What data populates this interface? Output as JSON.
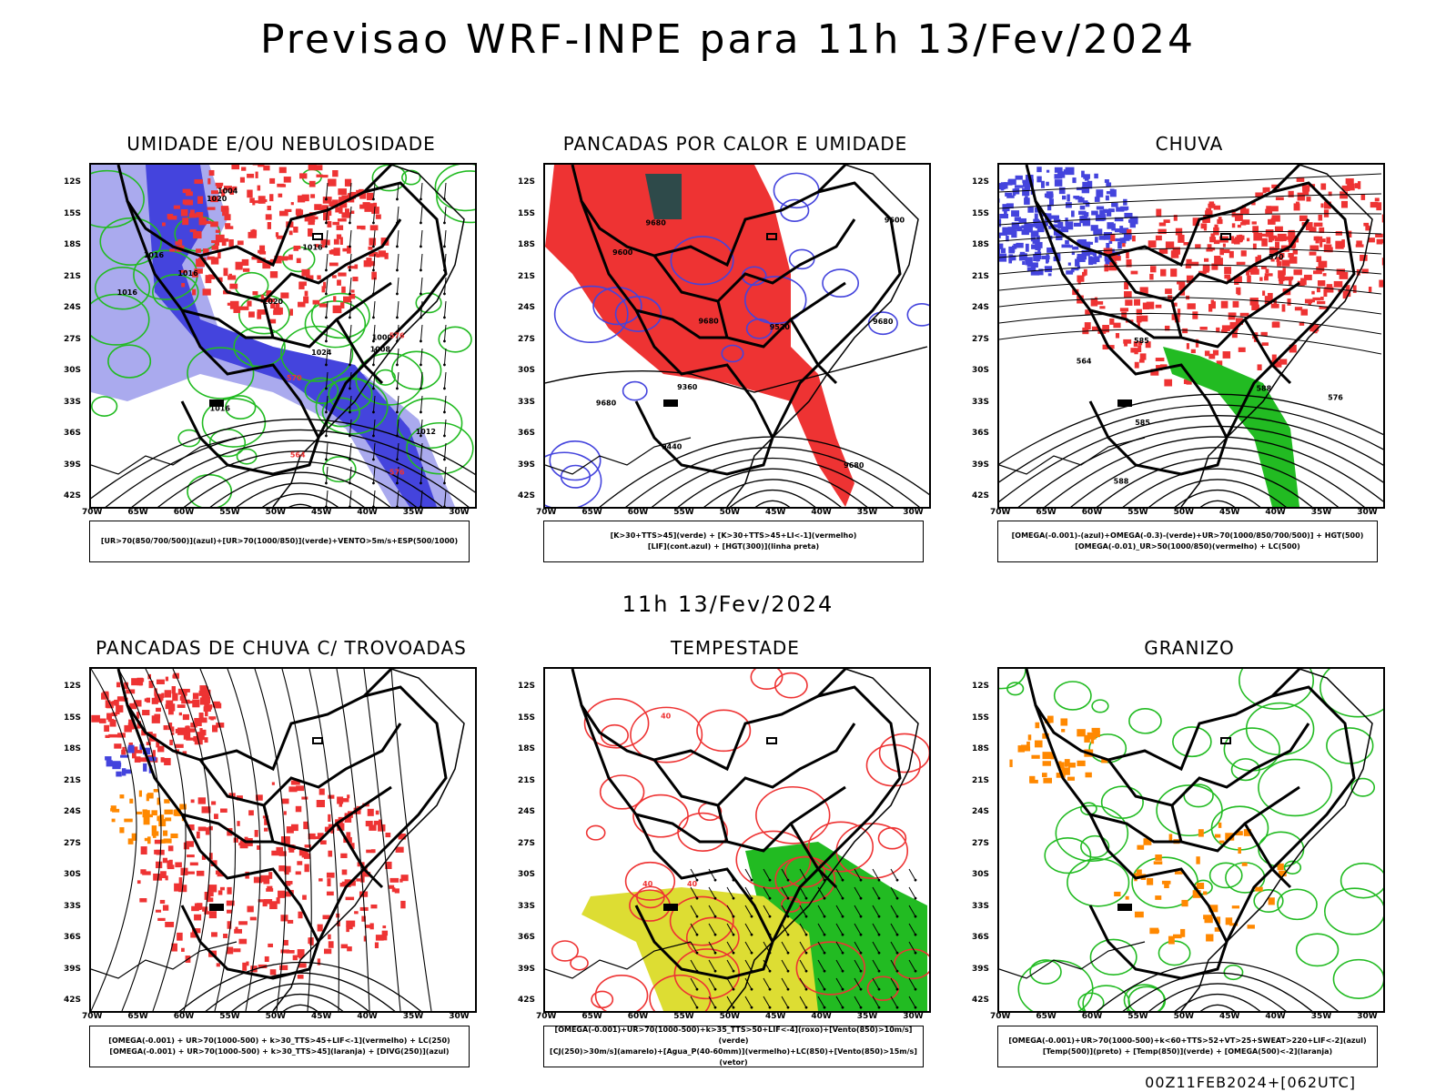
{
  "title": "Previsao WRF-INPE  para 11h 13/Fev/2024",
  "subtitle": "11h 13/Fev/2024",
  "footer": "00Z11FEB2024+[062UTC]",
  "lat_labels": [
    "12S",
    "15S",
    "18S",
    "21S",
    "24S",
    "27S",
    "30S",
    "33S",
    "36S",
    "39S",
    "42S"
  ],
  "lon_labels": [
    "70W",
    "65W",
    "60W",
    "55W",
    "50W",
    "45W",
    "40W",
    "35W",
    "30W"
  ],
  "colors": {
    "blue_dark": "#4444dd",
    "blue_light": "#aaaaee",
    "green": "#22bb22",
    "red": "#ee3333",
    "orange": "#ff8800",
    "yellow": "#dddd33",
    "teal_dark": "#2e4a4a",
    "black": "#000000"
  },
  "panels": [
    {
      "title": "UMIDADE E/OU NEBULOSIDADE",
      "legend": [
        "[UR>70(850/700/500)](azul)+[UR>70(1000/850)](verde)+VENTO>5m/s+ESP(500/1000)"
      ],
      "labels": [
        "1016",
        "1016",
        "1020",
        "1020",
        "1016",
        "1016",
        "1016",
        "1024",
        "1012",
        "1008",
        "1004",
        "1000",
        "576",
        "576",
        "570",
        "564"
      ]
    },
    {
      "title": "PANCADAS POR CALOR E UMIDADE",
      "legend": [
        "[K>30+TTS>45](verde) + [K>30+TTS>45+LI<-1](vermelho)",
        "[LIF](cont.azul) + [HGT(300)](linha preta)"
      ],
      "labels": [
        "9680",
        "9680",
        "9680",
        "9680",
        "9680",
        "9600",
        "9520",
        "9440",
        "9360",
        "9600"
      ]
    },
    {
      "title": "CHUVA",
      "legend": [
        "[OMEGA(-0.001)-(azul)+OMEGA(-0.3)-(verde)+UR>70(1000/850/700/500)] + HGT(500)",
        "[OMEGA(-0.01)_UR>50(1000/850)(vermelho) + LC(500)"
      ],
      "labels": [
        "588",
        "588",
        "585",
        "585",
        "576",
        "570",
        "564"
      ]
    },
    {
      "title": "PANCADAS DE CHUVA C/ TROVOADAS",
      "legend": [
        "[OMEGA(-0.001) + UR>70(1000-500) + k>30_TTS>45+LIF<-1](vermelho) + LC(250)",
        "[OMEGA(-0.001) + UR>70(1000-500) + k>30_TTS>45](laranja) + [DIVG(250)](azul)"
      ],
      "labels": []
    },
    {
      "title": "TEMPESTADE",
      "legend": [
        "[OMEGA(-0.001)+UR>70(1000-500)+k>35_TTS>50+LIF<-4](roxo)+[Vento(850)>10m/s](verde)",
        "[CJ(250)>30m/s](amarelo)+[Agua_P(40-60mm)](vermelho)+LC(850)+[Vento(850)>15m/s](vetor)"
      ],
      "labels": [
        "40",
        "40",
        "40"
      ]
    },
    {
      "title": "GRANIZO",
      "legend": [
        "[OMEGA(-0.001)+UR>70(1000-500)+k<60+TTS>52+VT>25+SWEAT>220+LIF<-2](azul)",
        "[Temp(500)](preto) + [Temp(850)](verde) + [OMEGA(500)<-2](laranja)"
      ],
      "labels": []
    }
  ]
}
